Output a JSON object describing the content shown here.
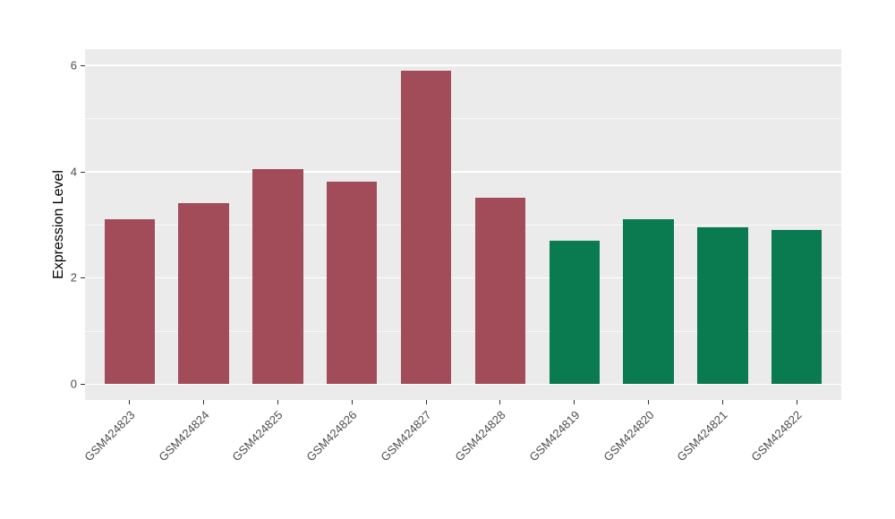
{
  "chart_data": {
    "type": "bar",
    "title": "",
    "xlabel": "",
    "ylabel": "Expression Level",
    "categories": [
      "GSM424823",
      "GSM424824",
      "GSM424825",
      "GSM424826",
      "GSM424827",
      "GSM424828",
      "GSM424819",
      "GSM424820",
      "GSM424821",
      "GSM424822"
    ],
    "values": [
      3.1,
      3.4,
      4.05,
      3.8,
      5.9,
      3.5,
      2.7,
      3.1,
      2.95,
      2.9
    ],
    "bar_colors": [
      "#A24C5A",
      "#A24C5A",
      "#A24C5A",
      "#A24C5A",
      "#A24C5A",
      "#A24C5A",
      "#0A7A50",
      "#0A7A50",
      "#0A7A50",
      "#0A7A50"
    ],
    "groups": [
      {
        "name": "group-red",
        "color": "#A24C5A",
        "categories": [
          "GSM424823",
          "GSM424824",
          "GSM424825",
          "GSM424826",
          "GSM424827",
          "GSM424828"
        ]
      },
      {
        "name": "group-green",
        "color": "#0A7A50",
        "categories": [
          "GSM424819",
          "GSM424820",
          "GSM424821",
          "GSM424822"
        ]
      }
    ],
    "ylim": [
      0,
      6
    ],
    "yticks": [
      0,
      2,
      4,
      6
    ],
    "yminor_ticks": [
      1,
      3,
      5
    ],
    "legend_position": "none",
    "grid": "on",
    "panel_bg": "#EBEBEB",
    "grid_color": "#FFFFFF",
    "axis_text_color": "#4D4D4D",
    "axis_title_color": "#000000",
    "tick_mark_color": "#333333"
  }
}
